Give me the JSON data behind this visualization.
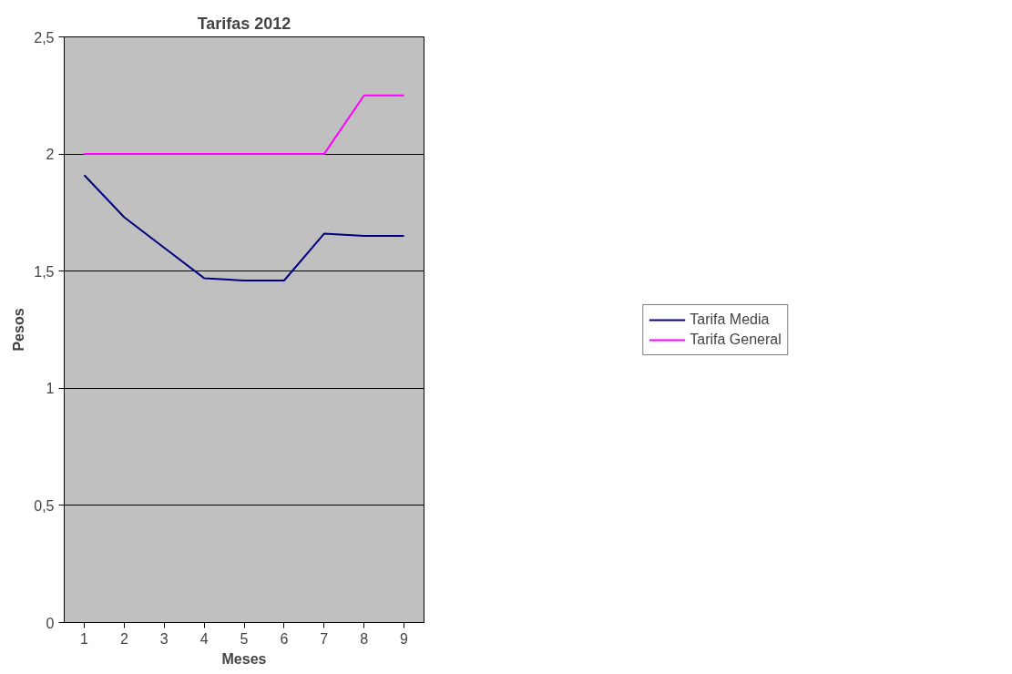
{
  "chart_data": {
    "type": "line",
    "title": "Tarifas 2012",
    "xlabel": "Meses",
    "ylabel": "Pesos",
    "categories": [
      "1",
      "2",
      "3",
      "4",
      "5",
      "6",
      "7",
      "8",
      "9"
    ],
    "series": [
      {
        "name": "Tarifa Media",
        "color": "#000080",
        "values": [
          1.91,
          1.73,
          1.6,
          1.47,
          1.46,
          1.46,
          1.66,
          1.65,
          1.65
        ]
      },
      {
        "name": "Tarifa General",
        "color": "#ff00ff",
        "values": [
          2,
          2,
          2,
          2,
          2,
          2,
          2,
          2.25,
          2.25
        ]
      }
    ],
    "ylim": [
      0,
      2.5
    ],
    "yticks": [
      0,
      {
        "value": 0.5,
        "label": "0,5"
      },
      1,
      {
        "value": 1.5,
        "label": "1,5"
      },
      2,
      {
        "value": 2.5,
        "label": "2,5"
      }
    ],
    "grid": "y",
    "legend": "right",
    "marker": "none",
    "line_style": "solid"
  }
}
